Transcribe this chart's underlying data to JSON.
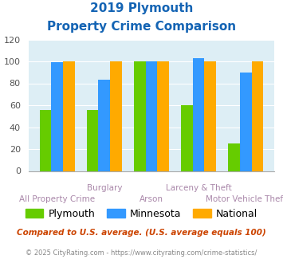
{
  "title_line1": "2019 Plymouth",
  "title_line2": "Property Crime Comparison",
  "title_color": "#1464b4",
  "categories": [
    "All Property Crime",
    "Burglary",
    "Arson",
    "Larceny & Theft",
    "Motor Vehicle Theft"
  ],
  "group_labels_top": [
    "",
    "Burglary",
    "",
    "Larceny & Theft",
    ""
  ],
  "group_labels_bottom": [
    "All Property Crime",
    "",
    "Arson",
    "",
    "Motor Vehicle Theft"
  ],
  "plymouth_values": [
    56,
    56,
    100,
    60,
    25
  ],
  "minnesota_values": [
    99,
    83,
    100,
    103,
    90
  ],
  "national_values": [
    100,
    100,
    100,
    100,
    100
  ],
  "plymouth_color": "#66cc00",
  "minnesota_color": "#3399ff",
  "national_color": "#ffaa00",
  "ylim": [
    0,
    120
  ],
  "yticks": [
    0,
    20,
    40,
    60,
    80,
    100,
    120
  ],
  "background_color": "#ddeef5",
  "legend_labels": [
    "Plymouth",
    "Minnesota",
    "National"
  ],
  "footnote1": "Compared to U.S. average. (U.S. average equals 100)",
  "footnote2": "© 2025 CityRating.com - https://www.cityrating.com/crime-statistics/",
  "footnote1_color": "#cc4400",
  "footnote2_color": "#888888",
  "label_color": "#aa88aa"
}
